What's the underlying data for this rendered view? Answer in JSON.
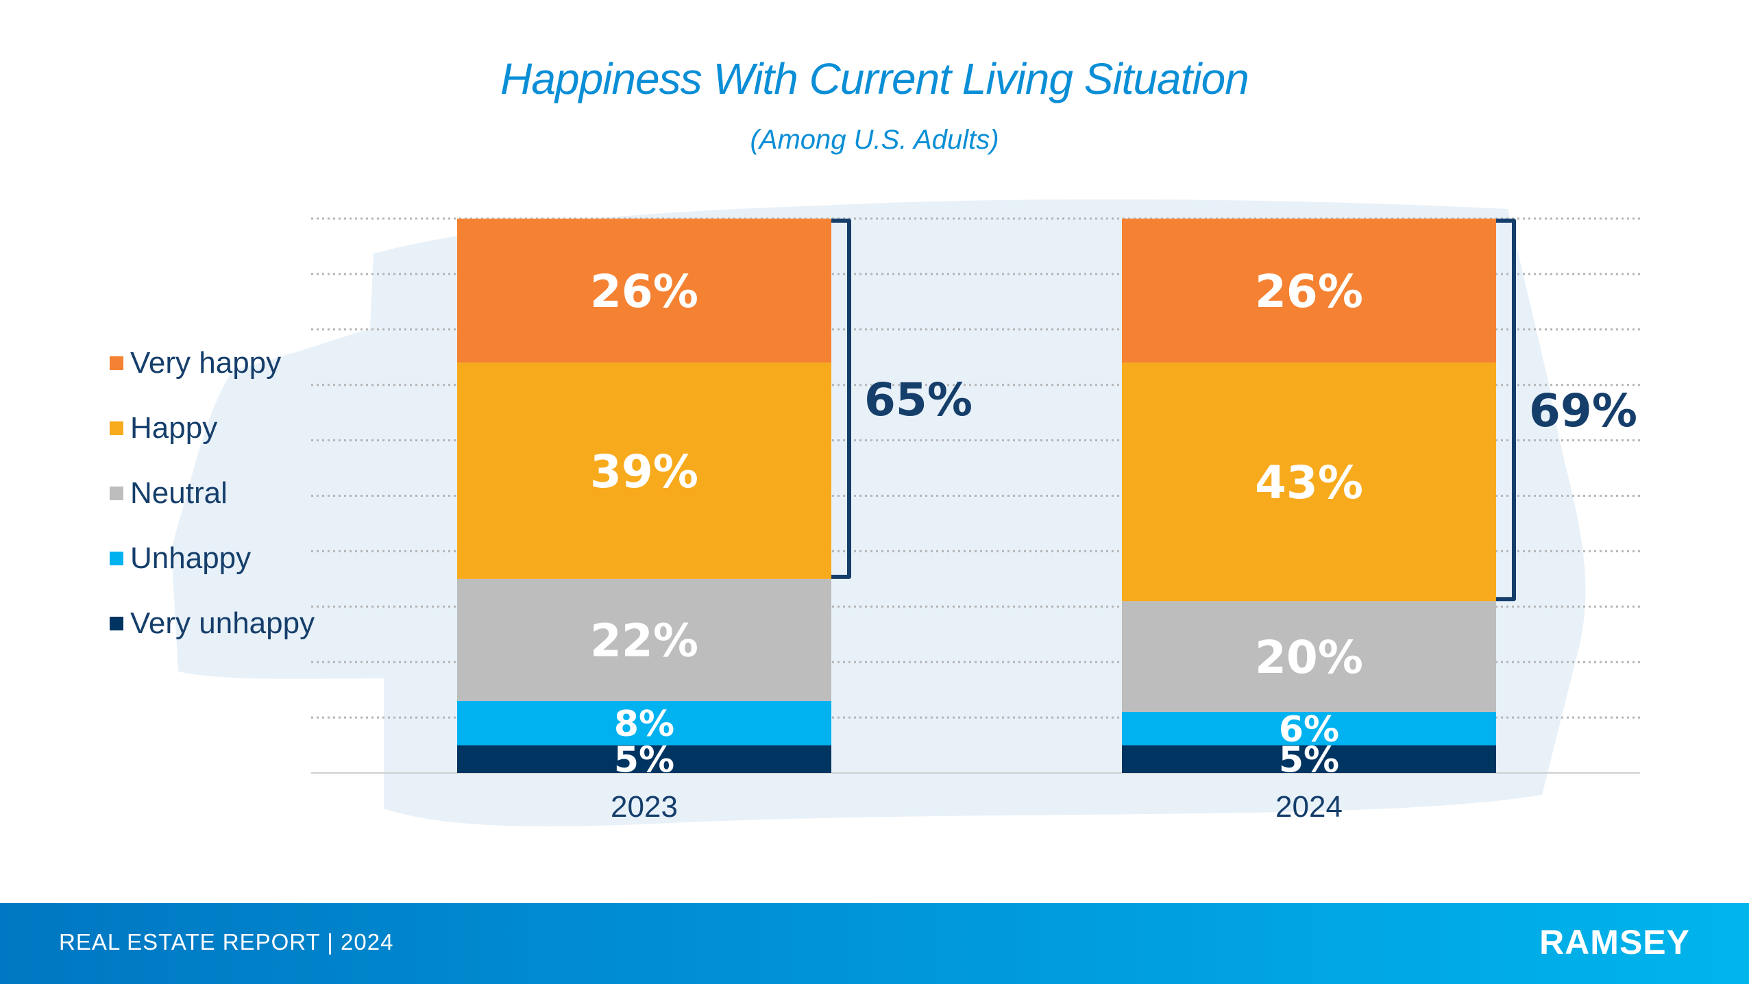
{
  "chart_data": {
    "type": "bar",
    "stacked": true,
    "title": "Happiness With Current Living Situation",
    "subtitle": "(Among U.S. Adults)",
    "categories": [
      "2023",
      "2024"
    ],
    "ylim": [
      0,
      100
    ],
    "grid": true,
    "legend_position": "left",
    "series": [
      {
        "name": "Very unhappy",
        "color": "#003461",
        "values": [
          5,
          5
        ],
        "labels": [
          "5%",
          "5%"
        ]
      },
      {
        "name": "Unhappy",
        "color": "#00b2f0",
        "values": [
          8,
          6
        ],
        "labels": [
          "8%",
          "6%"
        ]
      },
      {
        "name": "Neutral",
        "color": "#bdbdbd",
        "values": [
          22,
          20
        ],
        "labels": [
          "22%",
          "20%"
        ]
      },
      {
        "name": "Happy",
        "color": "#f8aa1d",
        "values": [
          39,
          43
        ],
        "labels": [
          "39%",
          "43%"
        ]
      },
      {
        "name": "Very happy",
        "color": "#f58233",
        "values": [
          26,
          26
        ],
        "labels": [
          "26%",
          "26%"
        ]
      }
    ],
    "bracket_totals": [
      "65%",
      "69%"
    ],
    "bracket_color": "#153e6b"
  },
  "legend": [
    {
      "label": "Very happy",
      "color": "#f58233"
    },
    {
      "label": "Happy",
      "color": "#f8aa1d"
    },
    {
      "label": "Neutral",
      "color": "#bdbdbd"
    },
    {
      "label": "Unhappy",
      "color": "#00b2f0"
    },
    {
      "label": "Very unhappy",
      "color": "#003461"
    }
  ],
  "footer": {
    "report": "REAL ESTATE REPORT | 2024",
    "brand": "RAMSEY"
  }
}
